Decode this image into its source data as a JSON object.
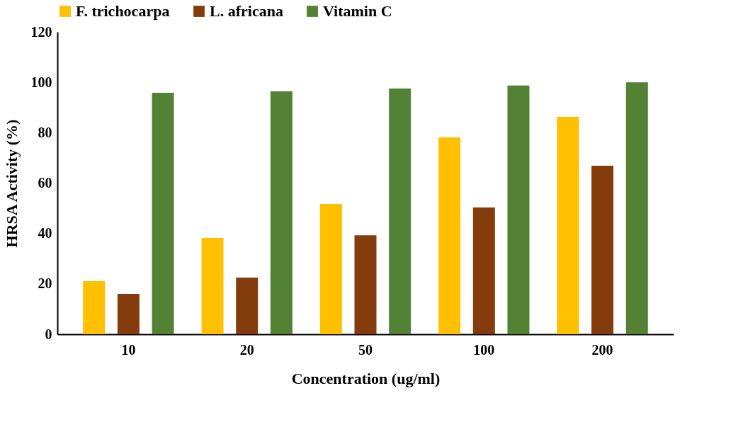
{
  "chart_data": {
    "type": "bar",
    "xlabel": "Concentration (ug/ml)",
    "ylabel": "HRSA Activity (%)",
    "categories": [
      "10",
      "20",
      "50",
      "100",
      "200"
    ],
    "series": [
      {
        "name": "F. trichocarpa",
        "color": "#ffc000",
        "values": [
          21.1,
          38.2,
          51.7,
          78.1,
          86.3
        ]
      },
      {
        "name": "L. africana",
        "color": "#843c0c",
        "values": [
          16.0,
          22.5,
          39.3,
          50.3,
          66.9
        ]
      },
      {
        "name": "Vitamin C",
        "color": "#548235",
        "values": [
          95.8,
          96.4,
          97.5,
          98.7,
          100
        ]
      }
    ],
    "ylim": [
      0,
      120
    ],
    "yticks": [
      0,
      20,
      40,
      60,
      80,
      100,
      120
    ],
    "grid": false,
    "legend": "top"
  }
}
